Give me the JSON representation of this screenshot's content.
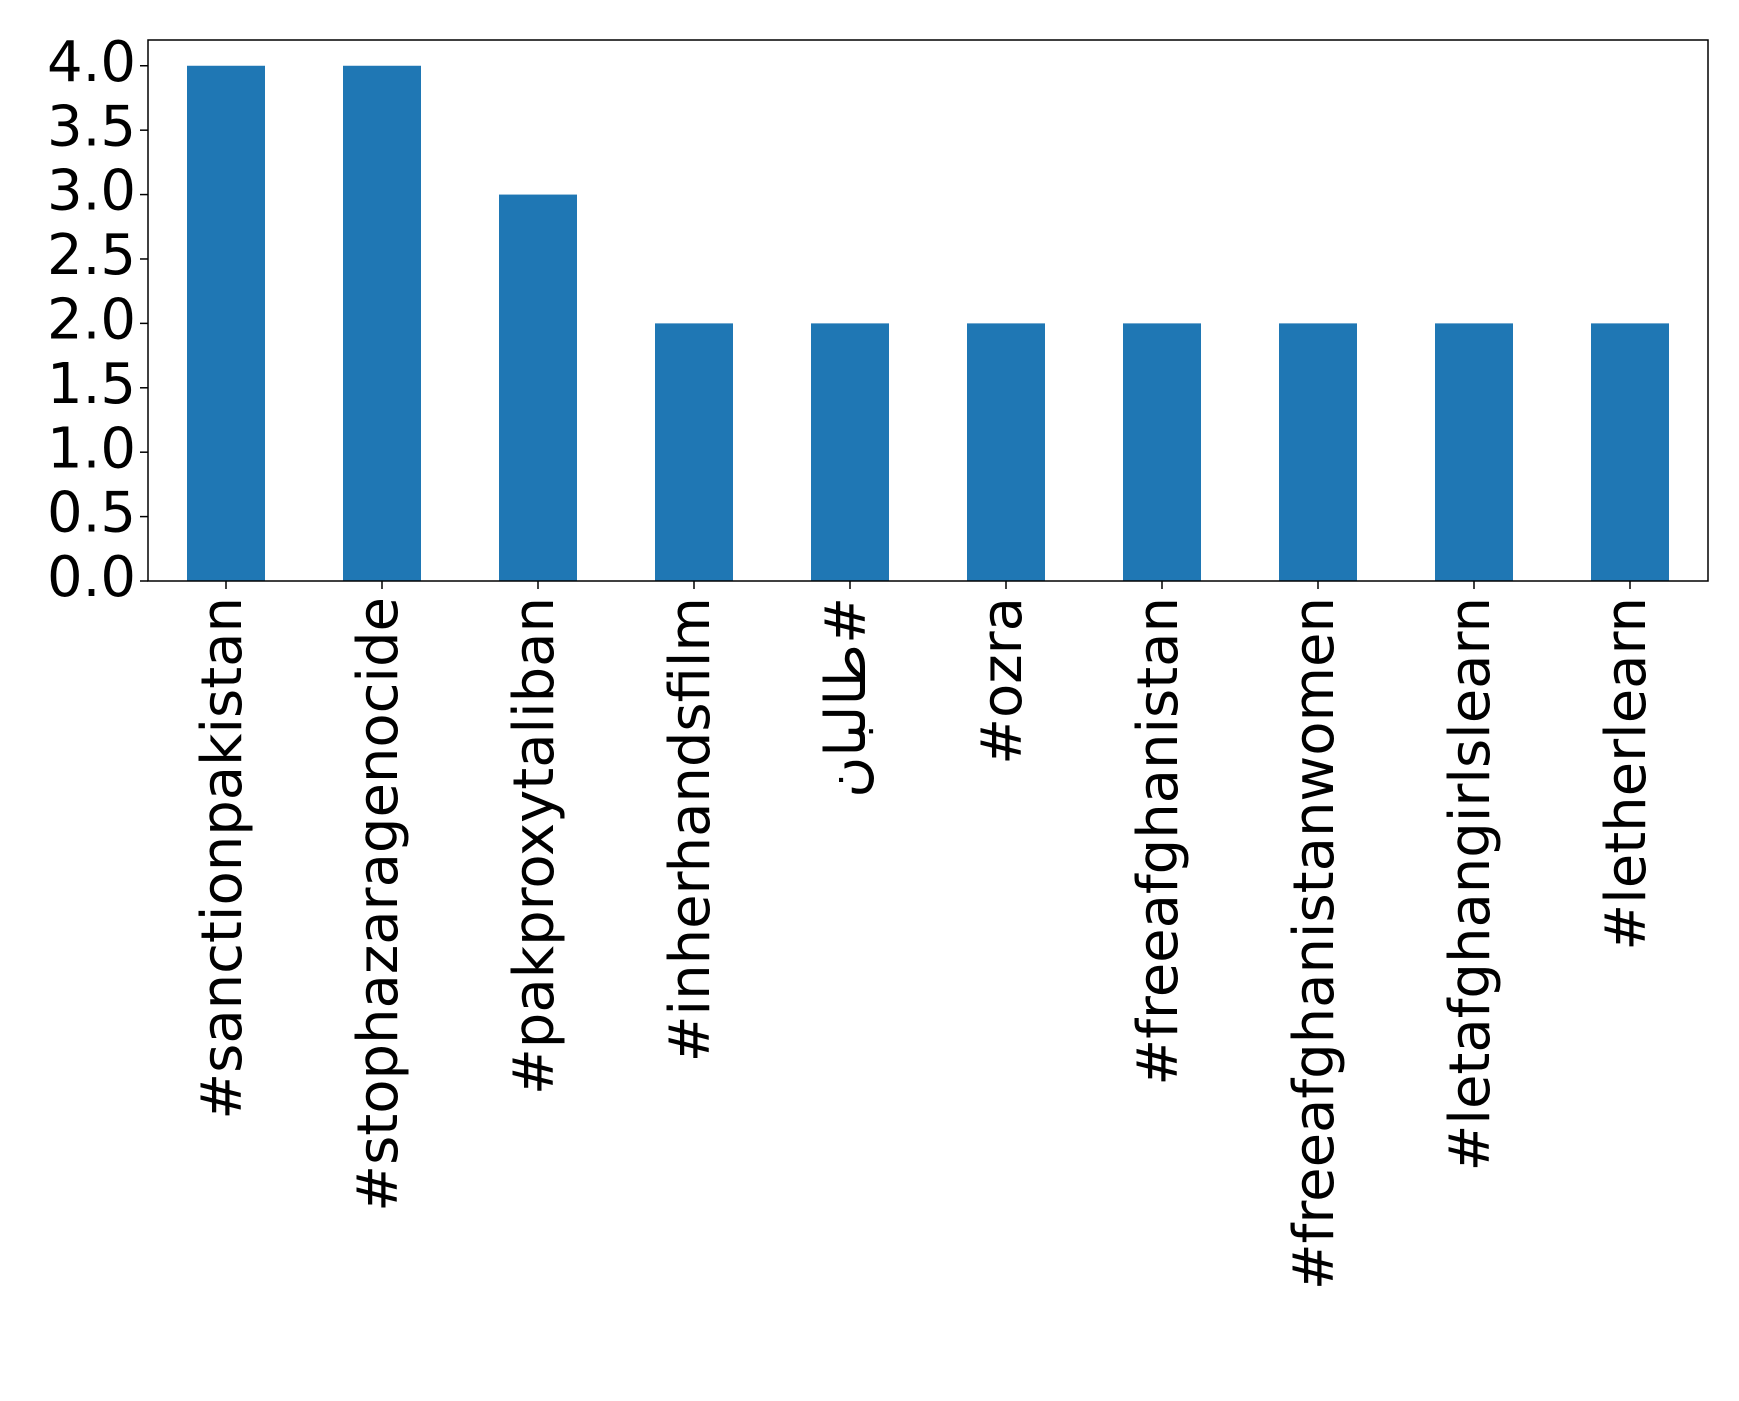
{
  "chart_data": {
    "type": "bar",
    "categories": [
      "#sanctionpakistan",
      "#stophazaragenocide",
      "#pakproxytaliban",
      "#inherhandsfilm",
      "#طالبان",
      "#ozra",
      "#freeafghanistan",
      "#freeafghanistanwomen",
      "#letafghangirlslearn",
      "#letherlearn"
    ],
    "values": [
      4,
      4,
      3,
      2,
      2,
      2,
      2,
      2,
      2,
      2
    ],
    "color": "#1f77b4",
    "ylim": [
      0,
      4.2
    ],
    "yticks": [
      {
        "value": 0,
        "label": "0.0"
      },
      {
        "value": 0.5,
        "label": "0.5"
      },
      {
        "value": 1,
        "label": "1.0"
      },
      {
        "value": 1.5,
        "label": "1.5"
      },
      {
        "value": 2,
        "label": "2.0"
      },
      {
        "value": 2.5,
        "label": "2.5"
      },
      {
        "value": 3,
        "label": "3.0"
      },
      {
        "value": 3.5,
        "label": "3.5"
      },
      {
        "value": 4,
        "label": "4.0"
      }
    ],
    "grid": false
  }
}
